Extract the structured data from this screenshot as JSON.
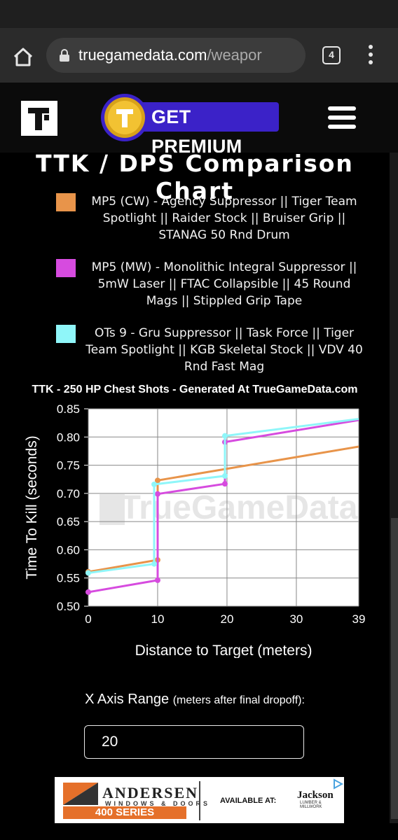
{
  "browser": {
    "url_host": "truegamedata.com",
    "url_path": "/weapor",
    "tab_count": "4"
  },
  "header": {
    "premium_label": "GET PREMIUM"
  },
  "page": {
    "title": "TTK / DPS Comparison Chart"
  },
  "legend": [
    {
      "color": "#e8944a",
      "text": "MP5 (CW) - Agency Suppressor || Tiger Team Spotlight || Raider Stock || Bruiser Grip || STANAG 50 Rnd Drum"
    },
    {
      "color": "#d64bdf",
      "text": "MP5 (MW) - Monolithic Integral Suppressor || 5mW Laser || FTAC Collapsible || 45 Round Mags || Stippled Grip Tape"
    },
    {
      "color": "#8ff6f9",
      "text": "OTs 9 - Gru Suppressor || Task Force || Tiger Team Spotlight || KGB Skeletal Stock || VDV 40 Rnd Fast Mag"
    }
  ],
  "watermark": "TrueGameData",
  "chart_data": {
    "type": "line",
    "title": "TTK - 250 HP Chest Shots - Generated At TrueGameData.com",
    "xlabel": "Distance to Target (meters)",
    "ylabel": "Time To Kill (seconds)",
    "xlim": [
      0,
      39
    ],
    "ylim": [
      0.5,
      0.85
    ],
    "xticks": [
      "0",
      "10",
      "20",
      "30",
      "39"
    ],
    "yticks": [
      "0.50",
      "0.55",
      "0.60",
      "0.65",
      "0.70",
      "0.75",
      "0.80",
      "0.85"
    ],
    "grid": true,
    "series": [
      {
        "name": "MP5 (CW) - Agency Suppressor || Tiger Team Spotlight || Raider Stock || Bruiser Grip || STANAG 50 Rnd Drum",
        "color": "#e8944a",
        "points": [
          [
            0,
            0.561
          ],
          [
            10,
            0.582
          ],
          [
            10,
            0.723
          ],
          [
            39,
            0.783
          ]
        ]
      },
      {
        "name": "MP5 (MW) - Monolithic Integral Suppressor || 5mW Laser || FTAC Collapsible || 45 Round Mags || Stippled Grip Tape",
        "color": "#d64bdf",
        "points": [
          [
            0,
            0.525
          ],
          [
            10,
            0.546
          ],
          [
            10,
            0.699
          ],
          [
            19.7,
            0.717
          ],
          [
            19.7,
            0.791
          ],
          [
            39,
            0.83
          ]
        ]
      },
      {
        "name": "OTs 9 - Gru Suppressor || Task Force || Tiger Team Spotlight || KGB Skeletal Stock || VDV 40 Rnd Fast Mag",
        "color": "#8ff6f9",
        "points": [
          [
            0,
            0.559
          ],
          [
            9.5,
            0.575
          ],
          [
            9.5,
            0.716
          ],
          [
            19.7,
            0.731
          ],
          [
            19.7,
            0.802
          ],
          [
            39,
            0.832
          ]
        ]
      }
    ]
  },
  "controls": {
    "range_label": "X Axis Range",
    "range_label_small": "(meters after final dropoff):",
    "range_value": "20"
  },
  "ad": {
    "brand": "ANDERSEN",
    "brand_sub": "WINDOWS & DOORS",
    "series": "400 SERIES",
    "available": "AVAILABLE AT:",
    "retailer": "Jackson",
    "retailer_sub": "LUMBER & MILLWORK"
  }
}
